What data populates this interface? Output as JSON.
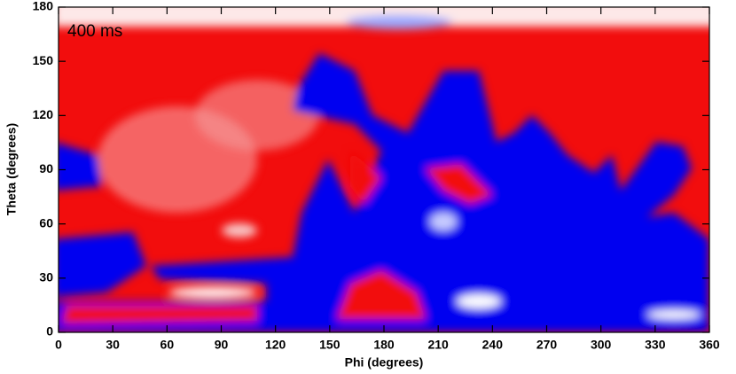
{
  "chart_data": {
    "type": "heatmap",
    "annotation": "400 ms",
    "x_label": "Phi (degrees)",
    "y_label": "Theta (degrees)",
    "xlim": [
      0,
      360
    ],
    "xticks": [
      0,
      30,
      60,
      90,
      120,
      150,
      180,
      210,
      240,
      270,
      300,
      330,
      360
    ],
    "ylim": [
      0,
      180
    ],
    "yticks": [
      0,
      30,
      60,
      90,
      120,
      150,
      180
    ]
  }
}
